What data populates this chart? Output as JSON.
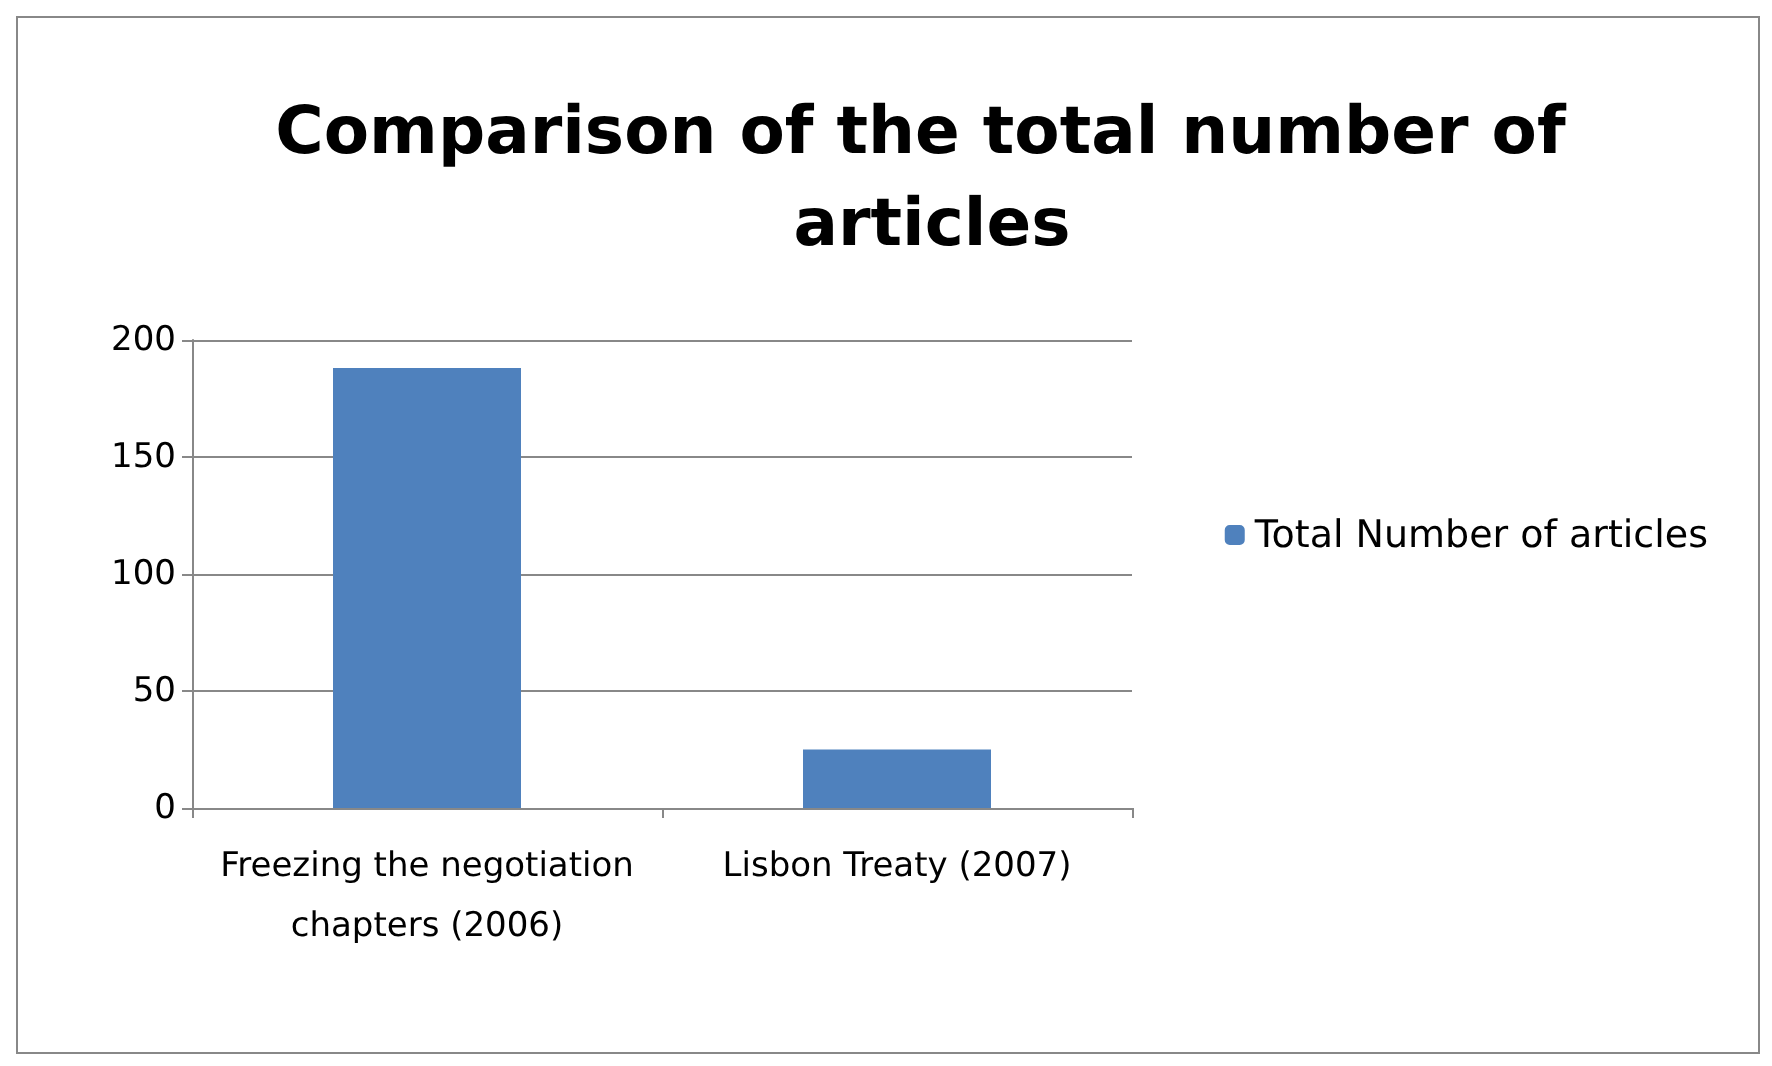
{
  "chart_data": {
    "type": "bar",
    "title": "Comparison of the total number of articles",
    "categories": [
      "Freezing the negotiation chapters (2006)",
      "Lisbon Treaty (2007)"
    ],
    "series": [
      {
        "name": "Total Number of articles",
        "color": "#4f81bd",
        "values": [
          188,
          25
        ]
      }
    ],
    "ylim": [
      0,
      200
    ],
    "yticks": [
      0,
      50,
      100,
      150,
      200
    ],
    "grid": "y",
    "legend": "right"
  }
}
